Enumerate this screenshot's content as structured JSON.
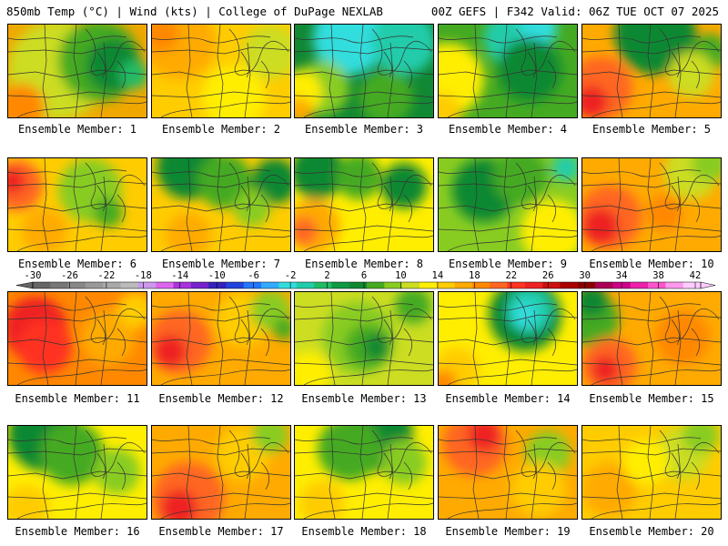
{
  "header": {
    "left": "850mb Temp (°C) | Wind (kts) | College of DuPage NEXLAB",
    "right": "00Z GEFS | F342 Valid: 06Z TUE OCT 07 2025"
  },
  "colorbar": {
    "ticks": [
      "-30",
      "-26",
      "-22",
      "-18",
      "-14",
      "-10",
      "-6",
      "-2",
      "2",
      "6",
      "10",
      "14",
      "18",
      "22",
      "26",
      "30",
      "34",
      "38",
      "42"
    ],
    "colors": [
      "#666666",
      "#777777",
      "#888888",
      "#999999",
      "#aaaaaa",
      "#bbbbbb",
      "#cc99ee",
      "#dd66ee",
      "#aa33dd",
      "#7722cc",
      "#3322bb",
      "#2244dd",
      "#2277ff",
      "#33aaff",
      "#33dddd",
      "#22ccaa",
      "#22bb66",
      "#119944",
      "#118833",
      "#44aa22",
      "#88cc22",
      "#ccdd22",
      "#ffee00",
      "#ffcc00",
      "#ffaa00",
      "#ff8800",
      "#ff6622",
      "#ff3322",
      "#ee2222",
      "#cc1111",
      "#aa0000",
      "#880000",
      "#aa0055",
      "#cc0088",
      "#ee22aa",
      "#ff55cc",
      "#ff99ee",
      "#ffccff"
    ]
  },
  "members": [
    {
      "label": "Ensemble Member: 1",
      "base": "#f0a800",
      "blobs": [
        {
          "c": "#ccdd22",
          "x": 55,
          "y": 50,
          "r": 55
        },
        {
          "c": "#44aa22",
          "x": 100,
          "y": 40,
          "r": 45
        },
        {
          "c": "#118833",
          "x": 115,
          "y": 45,
          "r": 30
        },
        {
          "c": "#22bb66",
          "x": 138,
          "y": 55,
          "r": 16
        },
        {
          "c": "#ff8800",
          "x": 15,
          "y": 90,
          "r": 25
        }
      ]
    },
    {
      "label": "Ensemble Member: 2",
      "base": "#ffcc00",
      "blobs": [
        {
          "c": "#ffaa00",
          "x": 30,
          "y": 20,
          "r": 40
        },
        {
          "c": "#ff8800",
          "x": 10,
          "y": 10,
          "r": 20
        },
        {
          "c": "#ccdd22",
          "x": 130,
          "y": 30,
          "r": 30
        },
        {
          "c": "#ffee00",
          "x": 90,
          "y": 80,
          "r": 35
        }
      ]
    },
    {
      "label": "Ensemble Member: 3",
      "base": "#118833",
      "blobs": [
        {
          "c": "#33dddd",
          "x": 60,
          "y": 15,
          "r": 40
        },
        {
          "c": "#22ccaa",
          "x": 120,
          "y": 20,
          "r": 35
        },
        {
          "c": "#88cc22",
          "x": 30,
          "y": 70,
          "r": 30
        },
        {
          "c": "#ffee00",
          "x": 5,
          "y": 75,
          "r": 25
        },
        {
          "c": "#ffaa00",
          "x": 5,
          "y": 95,
          "r": 15
        },
        {
          "c": "#44aa22",
          "x": 100,
          "y": 80,
          "r": 30
        }
      ]
    },
    {
      "label": "Ensemble Member: 4",
      "base": "#44aa22",
      "blobs": [
        {
          "c": "#ffee00",
          "x": 10,
          "y": 60,
          "r": 40
        },
        {
          "c": "#ffcc00",
          "x": 5,
          "y": 95,
          "r": 20
        },
        {
          "c": "#22ccaa",
          "x": 80,
          "y": 15,
          "r": 30
        },
        {
          "c": "#33dddd",
          "x": 110,
          "y": 5,
          "r": 20
        },
        {
          "c": "#118833",
          "x": 100,
          "y": 50,
          "r": 35
        }
      ]
    },
    {
      "label": "Ensemble Member: 5",
      "base": "#ffaa00",
      "blobs": [
        {
          "c": "#118833",
          "x": 80,
          "y": 10,
          "r": 45
        },
        {
          "c": "#44aa22",
          "x": 140,
          "y": 30,
          "r": 20
        },
        {
          "c": "#ccdd22",
          "x": 120,
          "y": 55,
          "r": 25
        },
        {
          "c": "#ff6622",
          "x": 20,
          "y": 70,
          "r": 35
        },
        {
          "c": "#ee2222",
          "x": 10,
          "y": 85,
          "r": 18
        }
      ]
    },
    {
      "label": "Ensemble Member: 6",
      "base": "#ffcc00",
      "blobs": [
        {
          "c": "#ff6622",
          "x": 10,
          "y": 30,
          "r": 28
        },
        {
          "c": "#ee2222",
          "x": 5,
          "y": 25,
          "r": 14
        },
        {
          "c": "#88cc22",
          "x": 90,
          "y": 35,
          "r": 35
        },
        {
          "c": "#44aa22",
          "x": 110,
          "y": 60,
          "r": 16
        },
        {
          "c": "#ffaa00",
          "x": 40,
          "y": 80,
          "r": 25
        }
      ]
    },
    {
      "label": "Ensemble Member: 7",
      "base": "#ffcc00",
      "blobs": [
        {
          "c": "#118833",
          "x": 40,
          "y": 10,
          "r": 35
        },
        {
          "c": "#44aa22",
          "x": 80,
          "y": 25,
          "r": 30
        },
        {
          "c": "#118833",
          "x": 135,
          "y": 25,
          "r": 25
        },
        {
          "c": "#88cc22",
          "x": 110,
          "y": 55,
          "r": 20
        },
        {
          "c": "#ffaa00",
          "x": 40,
          "y": 85,
          "r": 25
        }
      ]
    },
    {
      "label": "Ensemble Member: 8",
      "base": "#ffee00",
      "blobs": [
        {
          "c": "#118833",
          "x": 25,
          "y": 15,
          "r": 30
        },
        {
          "c": "#44aa22",
          "x": 70,
          "y": 20,
          "r": 25
        },
        {
          "c": "#118833",
          "x": 120,
          "y": 30,
          "r": 25
        },
        {
          "c": "#ffaa00",
          "x": 20,
          "y": 75,
          "r": 30
        },
        {
          "c": "#ff6622",
          "x": 10,
          "y": 80,
          "r": 15
        }
      ]
    },
    {
      "label": "Ensemble Member: 9",
      "base": "#88cc22",
      "blobs": [
        {
          "c": "#118833",
          "x": 50,
          "y": 35,
          "r": 35
        },
        {
          "c": "#44aa22",
          "x": 90,
          "y": 20,
          "r": 30
        },
        {
          "c": "#22ccaa",
          "x": 140,
          "y": 10,
          "r": 15
        },
        {
          "c": "#ffee00",
          "x": 125,
          "y": 80,
          "r": 35
        }
      ]
    },
    {
      "label": "Ensemble Member: 10",
      "base": "#ffaa00",
      "blobs": [
        {
          "c": "#ff6622",
          "x": 30,
          "y": 65,
          "r": 35
        },
        {
          "c": "#ee2222",
          "x": 20,
          "y": 75,
          "r": 20
        },
        {
          "c": "#ccdd22",
          "x": 120,
          "y": 15,
          "r": 30
        },
        {
          "c": "#88cc22",
          "x": 140,
          "y": 5,
          "r": 20
        },
        {
          "c": "#ff8800",
          "x": 90,
          "y": 60,
          "r": 20
        }
      ]
    },
    {
      "label": "Ensemble Member: 11",
      "base": "#ff8800",
      "blobs": [
        {
          "c": "#ee2222",
          "x": 30,
          "y": 40,
          "r": 35
        },
        {
          "c": "#ff3322",
          "x": 40,
          "y": 60,
          "r": 30
        },
        {
          "c": "#ffaa00",
          "x": 110,
          "y": 50,
          "r": 30
        },
        {
          "c": "#ffcc00",
          "x": 140,
          "y": 20,
          "r": 20
        }
      ]
    },
    {
      "label": "Ensemble Member: 12",
      "base": "#ffaa00",
      "blobs": [
        {
          "c": "#ff6622",
          "x": 30,
          "y": 55,
          "r": 35
        },
        {
          "c": "#ee2222",
          "x": 20,
          "y": 65,
          "r": 18
        },
        {
          "c": "#ffcc00",
          "x": 100,
          "y": 30,
          "r": 30
        },
        {
          "c": "#88cc22",
          "x": 130,
          "y": 20,
          "r": 22
        },
        {
          "c": "#44aa22",
          "x": 145,
          "y": 40,
          "r": 12
        }
      ]
    },
    {
      "label": "Ensemble Member: 13",
      "base": "#ccdd22",
      "blobs": [
        {
          "c": "#88cc22",
          "x": 70,
          "y": 50,
          "r": 40
        },
        {
          "c": "#44aa22",
          "x": 80,
          "y": 60,
          "r": 25
        },
        {
          "c": "#118833",
          "x": 90,
          "y": 60,
          "r": 14
        },
        {
          "c": "#ffee00",
          "x": 15,
          "y": 90,
          "r": 25
        },
        {
          "c": "#44aa22",
          "x": 130,
          "y": 15,
          "r": 20
        }
      ]
    },
    {
      "label": "Ensemble Member: 14",
      "base": "#ffee00",
      "blobs": [
        {
          "c": "#118833",
          "x": 95,
          "y": 25,
          "r": 40
        },
        {
          "c": "#22ccaa",
          "x": 100,
          "y": 20,
          "r": 25
        },
        {
          "c": "#33dddd",
          "x": 95,
          "y": 25,
          "r": 14
        },
        {
          "c": "#ffcc00",
          "x": 20,
          "y": 85,
          "r": 25
        },
        {
          "c": "#ff8800",
          "x": 5,
          "y": 100,
          "r": 15
        }
      ]
    },
    {
      "label": "Ensemble Member: 15",
      "base": "#ffaa00",
      "blobs": [
        {
          "c": "#44aa22",
          "x": 10,
          "y": 30,
          "r": 30
        },
        {
          "c": "#118833",
          "x": 10,
          "y": 10,
          "r": 18
        },
        {
          "c": "#ff6622",
          "x": 30,
          "y": 80,
          "r": 30
        },
        {
          "c": "#ee2222",
          "x": 25,
          "y": 85,
          "r": 15
        },
        {
          "c": "#ff8800",
          "x": 110,
          "y": 50,
          "r": 30
        }
      ]
    },
    {
      "label": "Ensemble Member: 16",
      "base": "#ffee00",
      "blobs": [
        {
          "c": "#118833",
          "x": 40,
          "y": 10,
          "r": 40
        },
        {
          "c": "#44aa22",
          "x": 70,
          "y": 30,
          "r": 35
        },
        {
          "c": "#88cc22",
          "x": 120,
          "y": 50,
          "r": 25
        },
        {
          "c": "#ffcc00",
          "x": 20,
          "y": 90,
          "r": 25
        }
      ]
    },
    {
      "label": "Ensemble Member: 17",
      "base": "#ffaa00",
      "blobs": [
        {
          "c": "#ff6622",
          "x": 40,
          "y": 80,
          "r": 40
        },
        {
          "c": "#ee2222",
          "x": 30,
          "y": 90,
          "r": 20
        },
        {
          "c": "#ffcc00",
          "x": 100,
          "y": 30,
          "r": 30
        },
        {
          "c": "#88cc22",
          "x": 130,
          "y": 10,
          "r": 20
        }
      ]
    },
    {
      "label": "Ensemble Member: 18",
      "base": "#ffee00",
      "blobs": [
        {
          "c": "#118833",
          "x": 90,
          "y": 10,
          "r": 40
        },
        {
          "c": "#44aa22",
          "x": 60,
          "y": 25,
          "r": 35
        },
        {
          "c": "#88cc22",
          "x": 120,
          "y": 40,
          "r": 25
        },
        {
          "c": "#ffcc00",
          "x": 30,
          "y": 85,
          "r": 25
        }
      ]
    },
    {
      "label": "Ensemble Member: 19",
      "base": "#ffaa00",
      "blobs": [
        {
          "c": "#ff6622",
          "x": 40,
          "y": 20,
          "r": 35
        },
        {
          "c": "#ee2222",
          "x": 50,
          "y": 10,
          "r": 18
        },
        {
          "c": "#88cc22",
          "x": 120,
          "y": 30,
          "r": 25
        },
        {
          "c": "#ffcc00",
          "x": 110,
          "y": 70,
          "r": 30
        }
      ]
    },
    {
      "label": "Ensemble Member: 20",
      "base": "#ffcc00",
      "blobs": [
        {
          "c": "#ccdd22",
          "x": 110,
          "y": 30,
          "r": 30
        },
        {
          "c": "#88cc22",
          "x": 130,
          "y": 10,
          "r": 20
        },
        {
          "c": "#ffaa00",
          "x": 30,
          "y": 70,
          "r": 30
        },
        {
          "c": "#ffee00",
          "x": 70,
          "y": 40,
          "r": 25
        }
      ]
    }
  ]
}
